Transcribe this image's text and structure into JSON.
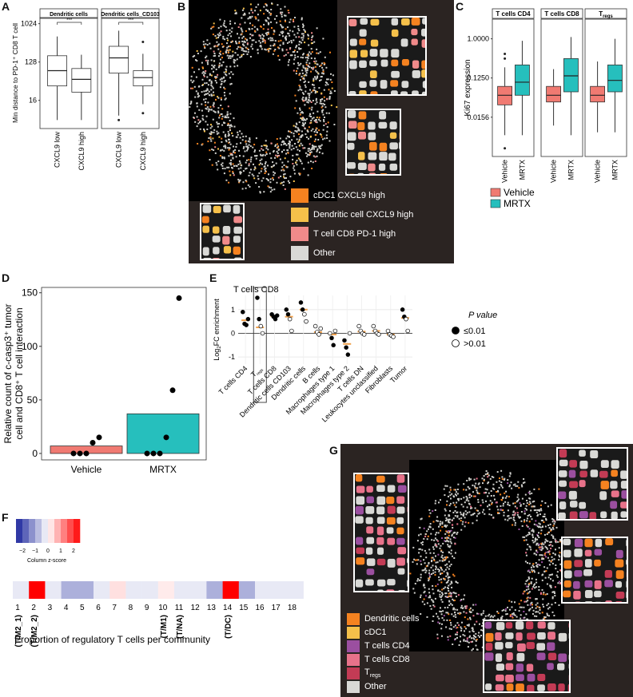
{
  "panel_letters": {
    "a": "A",
    "b": "B",
    "c": "C",
    "d": "D",
    "e": "E",
    "f": "F",
    "g": "G"
  },
  "chart_data": [
    {
      "panel": "A",
      "type": "box",
      "facets": [
        "Dendritic cells",
        "Dendritic cells_CD103"
      ],
      "categories": [
        "CXCL9 low",
        "CXCL9 high"
      ],
      "ylabel": "Min distance to PD-1⁺ CD8 T cell",
      "y_ticks": [
        "16",
        "128",
        "1024"
      ],
      "y_scale": "log2",
      "ylim": [
        4,
        1024
      ],
      "significance": "***",
      "boxes": [
        {
          "facet": 0,
          "category": "CXCL9 low",
          "q1": 35,
          "median": 80,
          "q3": 180,
          "whisker_low": 5.5,
          "whisker_high": 512,
          "outliers": []
        },
        {
          "facet": 0,
          "category": "CXCL9 high",
          "q1": 25,
          "median": 50,
          "q3": 90,
          "whisker_low": 5.5,
          "whisker_high": 190,
          "outliers": []
        },
        {
          "facet": 1,
          "category": "CXCL9 low",
          "q1": 70,
          "median": 160,
          "q3": 300,
          "whisker_low": 7,
          "whisker_high": 700,
          "outliers": [
            5.5
          ]
        },
        {
          "facet": 1,
          "category": "CXCL9 high",
          "q1": 35,
          "median": 55,
          "q3": 80,
          "whisker_low": 13,
          "whisker_high": 200,
          "outliers": [
            8,
            380
          ]
        }
      ]
    },
    {
      "panel": "C",
      "type": "box",
      "facets": [
        "T cells CD4",
        "T cells CD8",
        "T"
      ],
      "facet_subscripts": [
        "",
        "",
        "regs"
      ],
      "categories": [
        "Vehicle",
        "MRTX"
      ],
      "ylabel": "Ki67 expression",
      "y_ticks": [
        "0.0156",
        "0.1250",
        "1.0000"
      ],
      "y_scale": "log2",
      "ylim": [
        0.002,
        2.5
      ],
      "legend": [
        {
          "label": "Vehicle",
          "color": "#f07a72"
        },
        {
          "label": "MRTX",
          "color": "#26bfbd"
        }
      ],
      "boxes": [
        {
          "facet": 0,
          "category": "Vehicle",
          "q1": 0.03,
          "median": 0.05,
          "q3": 0.08,
          "whisker_low": 0.006,
          "whisker_high": 0.22,
          "outliers": [
            0.003,
            0.35,
            0.45
          ]
        },
        {
          "facet": 0,
          "category": "MRTX",
          "q1": 0.05,
          "median": 0.1,
          "q3": 0.25,
          "whisker_low": 0.006,
          "whisker_high": 0.9,
          "outliers": []
        },
        {
          "facet": 1,
          "category": "Vehicle",
          "q1": 0.035,
          "median": 0.05,
          "q3": 0.08,
          "whisker_low": 0.01,
          "whisker_high": 0.2,
          "outliers": []
        },
        {
          "facet": 1,
          "category": "MRTX",
          "q1": 0.06,
          "median": 0.14,
          "q3": 0.35,
          "whisker_low": 0.006,
          "whisker_high": 1.1,
          "outliers": []
        },
        {
          "facet": 2,
          "category": "Vehicle",
          "q1": 0.035,
          "median": 0.05,
          "q3": 0.08,
          "whisker_low": 0.007,
          "whisker_high": 0.3,
          "outliers": []
        },
        {
          "facet": 2,
          "category": "MRTX",
          "q1": 0.06,
          "median": 0.11,
          "q3": 0.25,
          "whisker_low": 0.007,
          "whisker_high": 1.0,
          "outliers": []
        }
      ]
    },
    {
      "panel": "D",
      "type": "bar",
      "categories": [
        "Vehicle",
        "MRTX"
      ],
      "values": [
        7,
        37
      ],
      "colors": [
        "#f07a72",
        "#26bfbd"
      ],
      "ylabel_lines": [
        "Relative count of c-casp3⁺ tumor",
        "cell and CD8⁺ T cell interaction"
      ],
      "y_ticks": [
        0,
        50,
        100,
        150
      ],
      "ylim": [
        -6,
        155
      ],
      "points": [
        [
          0,
          0,
          0,
          10,
          15
        ],
        [
          0,
          0,
          0,
          15,
          59,
          145
        ]
      ]
    },
    {
      "panel": "E",
      "type": "scatter",
      "title": "T cells CD8",
      "ylabel": "Log",
      "ylabel_sub": "2",
      "ylabel_rest": "FC enrichment",
      "y_ticks": [
        -1,
        0,
        1
      ],
      "ylim": [
        -1.3,
        1.6
      ],
      "categories": [
        "T cells CD4",
        "T",
        "T cells CD8",
        "Dendritic cells CD103",
        "Dendritic cells",
        "B cells",
        "Macrophages type 1",
        "Macrophages type 2",
        "T cells DN",
        "Leukocytes unclassified",
        "Fibroblasts",
        "Tumor"
      ],
      "category_subscripts": [
        "",
        "regs",
        "",
        "",
        "",
        "",
        "",
        "",
        "",
        "",
        "",
        ""
      ],
      "highlight_category": 1,
      "medians": [
        0.55,
        0.25,
        0.72,
        0.7,
        1.0,
        0.05,
        -0.05,
        -0.45,
        0.07,
        0.1,
        -0.05,
        0.65
      ],
      "points": [
        {
          "c": 0,
          "y": 0.9,
          "filled": true
        },
        {
          "c": 0,
          "y": 0.4,
          "filled": true
        },
        {
          "c": 0,
          "y": 0.35,
          "filled": true
        },
        {
          "c": 0,
          "y": 0.6,
          "filled": true
        },
        {
          "c": 1,
          "y": 1.5,
          "filled": true
        },
        {
          "c": 1,
          "y": 0.6,
          "filled": true
        },
        {
          "c": 1,
          "y": 0.3,
          "filled": false
        },
        {
          "c": 1,
          "y": 0.0,
          "filled": false
        },
        {
          "c": 2,
          "y": 0.8,
          "filled": true
        },
        {
          "c": 2,
          "y": 0.7,
          "filled": true
        },
        {
          "c": 2,
          "y": 0.6,
          "filled": true
        },
        {
          "c": 2,
          "y": 0.75,
          "filled": true
        },
        {
          "c": 3,
          "y": 1.0,
          "filled": true
        },
        {
          "c": 3,
          "y": 0.8,
          "filled": true
        },
        {
          "c": 3,
          "y": 0.6,
          "filled": false
        },
        {
          "c": 3,
          "y": 0.1,
          "filled": false
        },
        {
          "c": 4,
          "y": 1.3,
          "filled": true
        },
        {
          "c": 4,
          "y": 1.0,
          "filled": true
        },
        {
          "c": 4,
          "y": 0.8,
          "filled": false
        },
        {
          "c": 4,
          "y": 0.5,
          "filled": false
        },
        {
          "c": 5,
          "y": 0.3,
          "filled": false
        },
        {
          "c": 5,
          "y": 0.05,
          "filled": false
        },
        {
          "c": 5,
          "y": -0.05,
          "filled": false
        },
        {
          "c": 5,
          "y": 0.2,
          "filled": false
        },
        {
          "c": 6,
          "y": 0.0,
          "filled": false
        },
        {
          "c": 6,
          "y": -0.2,
          "filled": true
        },
        {
          "c": 6,
          "y": -0.5,
          "filled": true
        },
        {
          "c": 6,
          "y": 0.1,
          "filled": false
        },
        {
          "c": 7,
          "y": -0.3,
          "filled": true
        },
        {
          "c": 7,
          "y": -0.6,
          "filled": true
        },
        {
          "c": 7,
          "y": -0.9,
          "filled": true
        },
        {
          "c": 7,
          "y": 0.0,
          "filled": false
        },
        {
          "c": 8,
          "y": 0.3,
          "filled": false
        },
        {
          "c": 8,
          "y": 0.1,
          "filled": false
        },
        {
          "c": 8,
          "y": 0.0,
          "filled": false
        },
        {
          "c": 8,
          "y": -0.05,
          "filled": false
        },
        {
          "c": 9,
          "y": 0.3,
          "filled": false
        },
        {
          "c": 9,
          "y": 0.1,
          "filled": false
        },
        {
          "c": 9,
          "y": 0.0,
          "filled": false
        },
        {
          "c": 9,
          "y": -0.05,
          "filled": false
        },
        {
          "c": 10,
          "y": 0.1,
          "filled": false
        },
        {
          "c": 10,
          "y": -0.05,
          "filled": false
        },
        {
          "c": 10,
          "y": -0.1,
          "filled": false
        },
        {
          "c": 10,
          "y": -0.15,
          "filled": false
        },
        {
          "c": 11,
          "y": 1.0,
          "filled": true
        },
        {
          "c": 11,
          "y": 0.7,
          "filled": true
        },
        {
          "c": 11,
          "y": 0.6,
          "filled": false
        },
        {
          "c": 11,
          "y": 0.1,
          "filled": false
        }
      ],
      "legend_title": "P value",
      "legend": [
        {
          "label": "≤0.01",
          "filled": true
        },
        {
          "label": ">0.01",
          "filled": false
        }
      ]
    },
    {
      "panel": "F",
      "type": "heatmap",
      "colorbar_ticks": [
        "−2",
        "−1",
        "0",
        "1",
        "2"
      ],
      "colorbar_label": "Column z-score",
      "colorbar_range": [
        -2.5,
        2.5
      ],
      "communities": [
        "1",
        "2",
        "3",
        "4",
        "5",
        "6",
        "7",
        "8",
        "9",
        "10",
        "11",
        "12",
        "13",
        "14",
        "15",
        "16",
        "17",
        "18"
      ],
      "zscores": [
        -0.25,
        2.7,
        -0.25,
        -0.9,
        -0.9,
        -0.25,
        0.3,
        -0.25,
        -0.25,
        0.2,
        -0.25,
        -0.25,
        -0.9,
        2.7,
        -0.9,
        -0.25,
        -0.25,
        -0.25
      ],
      "community_labels": [
        {
          "index": 0,
          "label": "(T/M2_1)"
        },
        {
          "index": 1,
          "label": "(T/M2_2)"
        },
        {
          "index": 9,
          "label": "(T/M1)"
        },
        {
          "index": 10,
          "label": "(T/NA)"
        },
        {
          "index": 13,
          "label": "(T/DC)"
        }
      ],
      "xlabel": "Proportion of regulatory T cells per community"
    }
  ],
  "panel_b": {
    "legend": [
      {
        "label": "cDC1 CXCL9 high",
        "color": "#f58220"
      },
      {
        "label": "Dendritic cell CXCL9 high",
        "color": "#f5c04a"
      },
      {
        "label": "T cell CD8 PD-1 high",
        "color": "#f08a8a"
      },
      {
        "label": "Other",
        "color": "#d9d9d6"
      }
    ]
  },
  "panel_g": {
    "legend": [
      {
        "label": "Dendritic cells",
        "color": "#f58220"
      },
      {
        "label": "cDC1",
        "color": "#f5c04a"
      },
      {
        "label": "T cells CD4",
        "color": "#9b4fa0"
      },
      {
        "label": "T cells CD8",
        "color": "#e8728a"
      },
      {
        "label": "T",
        "sub": "regs",
        "color": "#c33b55"
      },
      {
        "label": "Other",
        "color": "#d9d9d6"
      }
    ]
  }
}
